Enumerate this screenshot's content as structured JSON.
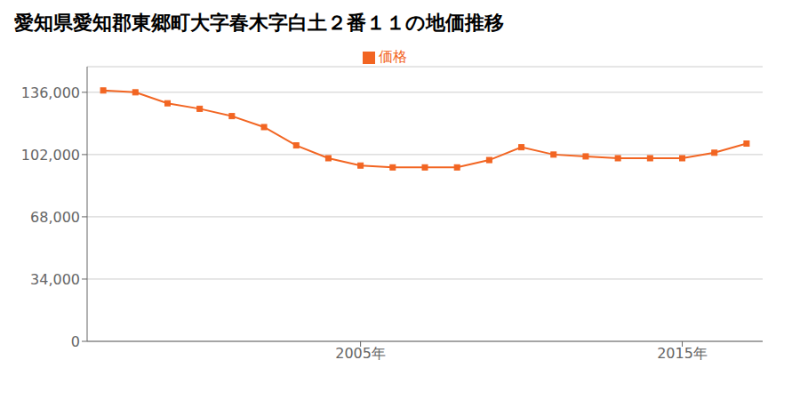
{
  "chart_data": {
    "type": "line",
    "title": "愛知県愛知郡東郷町大字春木字白土２番１１の地価推移",
    "x": [
      1997,
      1998,
      1999,
      2000,
      2001,
      2002,
      2003,
      2004,
      2005,
      2006,
      2007,
      2008,
      2009,
      2010,
      2011,
      2012,
      2013,
      2014,
      2015,
      2016,
      2017
    ],
    "series": [
      {
        "name": "価格",
        "color": "#F26522",
        "marker": "square",
        "values": [
          137000,
          136000,
          130000,
          127000,
          123000,
          117000,
          107000,
          100000,
          96000,
          95000,
          95000,
          95000,
          99000,
          106000,
          102000,
          101000,
          100000,
          100000,
          100000,
          103000,
          108000
        ]
      }
    ],
    "xlim": [
      1996.5,
      2017.5
    ],
    "xticks": [
      {
        "value": 2005,
        "label": "2005年"
      },
      {
        "value": 2015,
        "label": "2015年"
      }
    ],
    "ylim": [
      0,
      150000
    ],
    "yticks": [
      0,
      {
        "value": 34000,
        "label": "34,000"
      },
      {
        "value": 68000,
        "label": "68,000"
      },
      {
        "value": 102000,
        "label": "102,000"
      },
      {
        "value": 136000,
        "label": "136,000"
      }
    ],
    "grid": true,
    "legend": "top"
  }
}
